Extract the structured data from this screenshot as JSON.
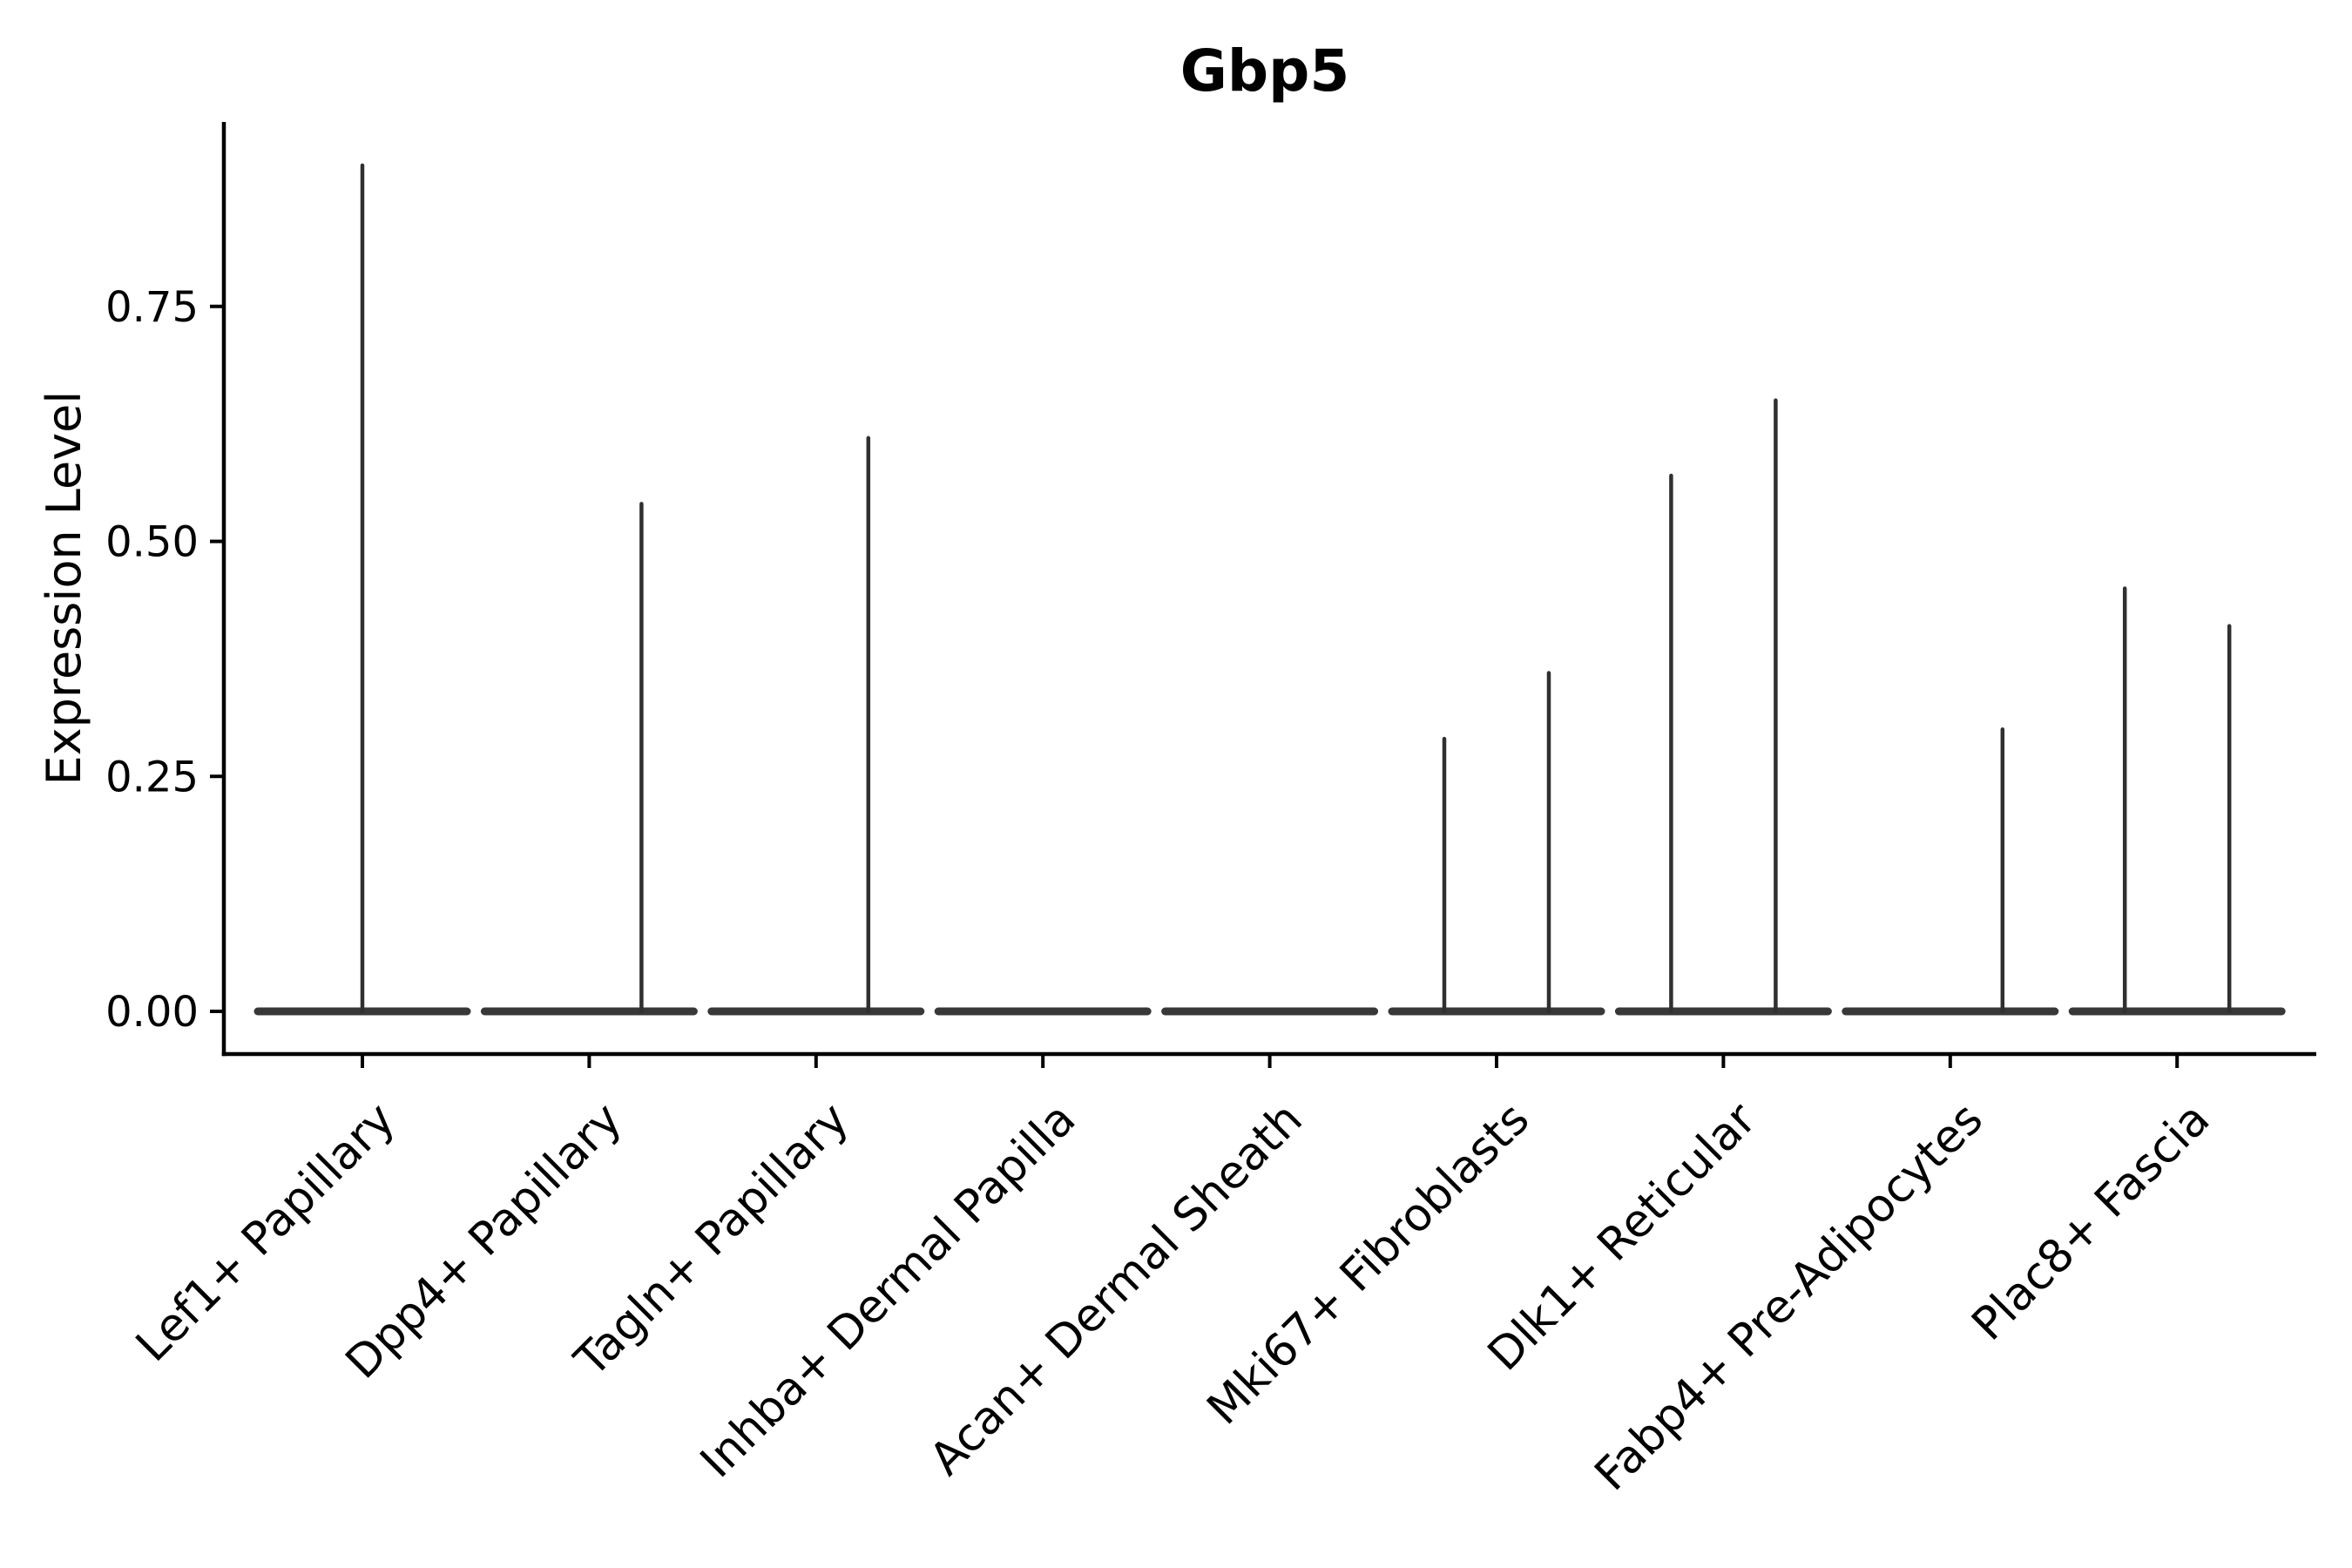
{
  "chart_data": {
    "type": "violin",
    "title": "Gbp5",
    "xlabel": "",
    "ylabel": "Expression Level",
    "ytick_labels": [
      "0.00",
      "0.25",
      "0.50",
      "0.75"
    ],
    "ytick_values": [
      0,
      0.25,
      0.5,
      0.75
    ],
    "ylim": [
      0,
      0.95
    ],
    "grid": false,
    "legend": "none",
    "categories": [
      "Lef1+ Papillary",
      "Dpp4+ Papillary",
      "Tagln+ Papillary",
      "Inhba+ Dermal Papilla",
      "Acan+ Dermal Sheath",
      "Mki67+ Fibroblasts",
      "Dlk1+ Reticular",
      "Fabp4+ Pre-Adipocytes",
      "Plac8+ Fascia"
    ],
    "violins": [
      {
        "category": "Lef1+ Papillary",
        "baseline": 0,
        "spikes": [
          {
            "position": "center",
            "max": 0.9
          }
        ]
      },
      {
        "category": "Dpp4+ Papillary",
        "baseline": 0,
        "spikes": [
          {
            "position": "right",
            "max": 0.54
          }
        ]
      },
      {
        "category": "Tagln+ Papillary",
        "baseline": 0,
        "spikes": [
          {
            "position": "right",
            "max": 0.61
          }
        ]
      },
      {
        "category": "Inhba+ Dermal Papilla",
        "baseline": 0,
        "spikes": []
      },
      {
        "category": "Acan+ Dermal Sheath",
        "baseline": 0,
        "spikes": []
      },
      {
        "category": "Mki67+ Fibroblasts",
        "baseline": 0,
        "spikes": [
          {
            "position": "left",
            "max": 0.29
          },
          {
            "position": "right",
            "max": 0.36
          }
        ]
      },
      {
        "category": "Dlk1+ Reticular",
        "baseline": 0,
        "spikes": [
          {
            "position": "left",
            "max": 0.57
          },
          {
            "position": "right",
            "max": 0.65
          }
        ]
      },
      {
        "category": "Fabp4+ Pre-Adipocytes",
        "baseline": 0,
        "spikes": [
          {
            "position": "right",
            "max": 0.3
          }
        ]
      },
      {
        "category": "Plac8+ Fascia",
        "baseline": 0,
        "spikes": [
          {
            "position": "left",
            "max": 0.45
          },
          {
            "position": "right",
            "max": 0.41
          }
        ]
      }
    ],
    "colors": {
      "violin_line": "#303030",
      "baseline_line": "#383838",
      "axis": "#000000",
      "text": "#000000",
      "background": "#ffffff"
    }
  }
}
